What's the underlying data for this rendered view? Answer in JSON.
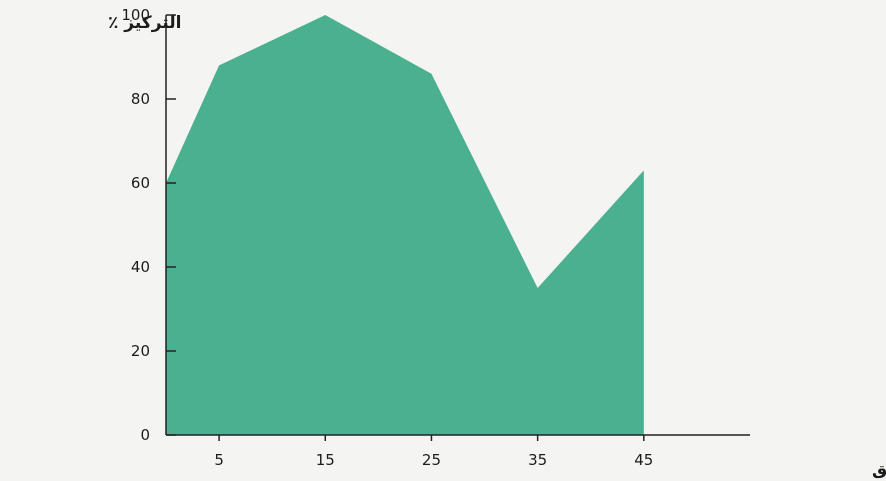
{
  "colors": {
    "area_fill": "#4bb08f",
    "axis": "#222222",
    "background": "#f4f5f3"
  },
  "chart_data": {
    "type": "area",
    "ylabel": "التركيز ٪",
    "xlabel": "الوقت بالدقائق",
    "x": [
      0,
      5,
      15,
      25,
      35,
      45
    ],
    "y": [
      60,
      88,
      100,
      86,
      35,
      63
    ],
    "xlim": [
      0,
      55
    ],
    "ylim": [
      0,
      100
    ],
    "x_ticks": [
      5,
      15,
      25,
      35,
      45
    ],
    "y_ticks": [
      0,
      20,
      40,
      60,
      80,
      100
    ],
    "grid": false,
    "legend": "none"
  }
}
